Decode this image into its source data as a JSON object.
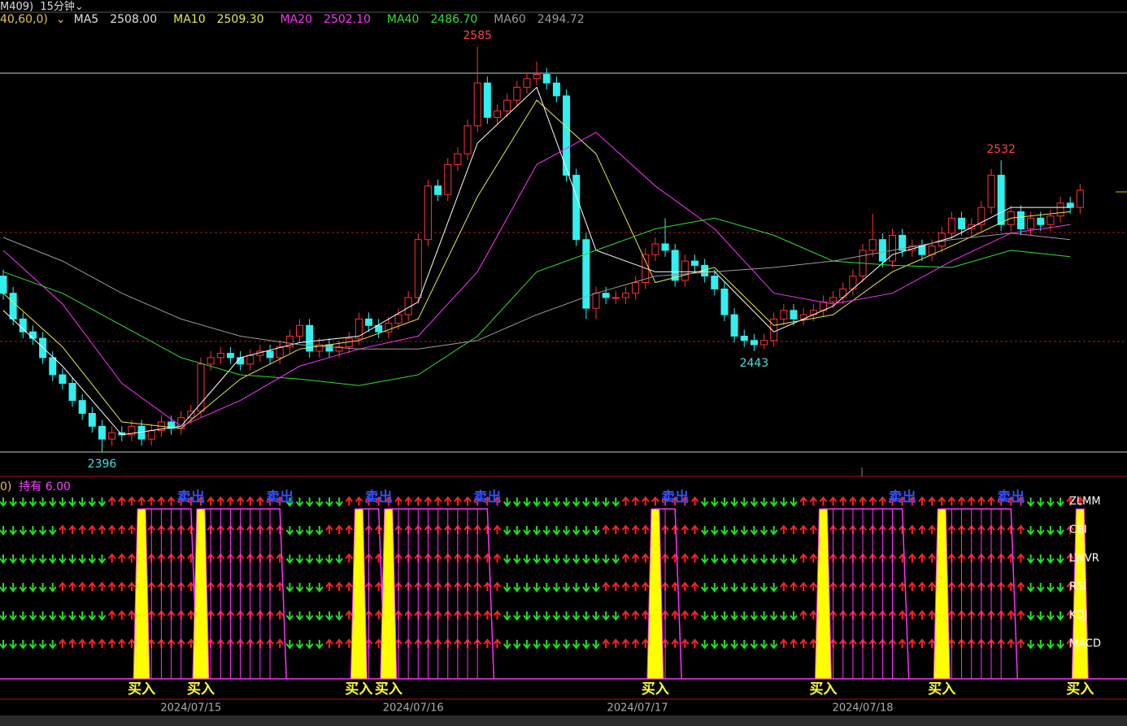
{
  "chart_data": {
    "type": "candlestick",
    "header": {
      "code": "M409)",
      "period": "15分钟",
      "params": "40,60,0)"
    },
    "ylim": [
      2385,
      2601
    ],
    "open": [
      2478,
      2470,
      2458,
      2452,
      2449,
      2440,
      2432,
      2428,
      2420,
      2414,
      2408,
      2402,
      2405,
      2404,
      2408,
      2402,
      2406,
      2410,
      2407,
      2412,
      2415,
      2437,
      2440,
      2442,
      2440,
      2437,
      2441,
      2443,
      2440,
      2445,
      2450,
      2455,
      2443,
      2446,
      2443,
      2445,
      2449,
      2458,
      2455,
      2452,
      2456,
      2460,
      2468,
      2495,
      2520,
      2516,
      2530,
      2535,
      2548,
      2568,
      2552,
      2555,
      2560,
      2566,
      2570,
      2572,
      2568,
      2562,
      2525,
      2495,
      2463,
      2470,
      2468,
      2468,
      2470,
      2475,
      2488,
      2493,
      2490,
      2476,
      2485,
      2483,
      2478,
      2472,
      2460,
      2450,
      2448,
      2446,
      2448,
      2458,
      2462,
      2458,
      2460,
      2462,
      2466,
      2468,
      2472,
      2478,
      2490,
      2495,
      2485,
      2497,
      2490,
      2492,
      2488,
      2492,
      2498,
      2505,
      2500,
      2502,
      2510,
      2525,
      2502,
      2508,
      2500,
      2505,
      2502,
      2506,
      2512,
      2510
    ],
    "high": [
      2481,
      2473,
      2461,
      2455,
      2452,
      2443,
      2435,
      2431,
      2423,
      2417,
      2411,
      2408,
      2408,
      2411,
      2411,
      2409,
      2413,
      2413,
      2415,
      2418,
      2440,
      2443,
      2445,
      2445,
      2443,
      2444,
      2446,
      2446,
      2448,
      2453,
      2458,
      2458,
      2449,
      2449,
      2448,
      2452,
      2461,
      2461,
      2458,
      2459,
      2463,
      2471,
      2498,
      2523,
      2523,
      2533,
      2538,
      2551,
      2585,
      2571,
      2558,
      2563,
      2569,
      2573,
      2578,
      2575,
      2571,
      2565,
      2528,
      2498,
      2473,
      2473,
      2471,
      2473,
      2478,
      2491,
      2496,
      2505,
      2493,
      2488,
      2488,
      2486,
      2481,
      2475,
      2463,
      2453,
      2451,
      2451,
      2461,
      2465,
      2465,
      2463,
      2465,
      2469,
      2471,
      2475,
      2481,
      2493,
      2507,
      2498,
      2500,
      2500,
      2495,
      2495,
      2495,
      2501,
      2508,
      2508,
      2505,
      2513,
      2528,
      2532,
      2511,
      2511,
      2508,
      2508,
      2509,
      2515,
      2515,
      2521
    ],
    "low": [
      2467,
      2455,
      2449,
      2446,
      2437,
      2429,
      2425,
      2417,
      2411,
      2405,
      2396,
      2399,
      2401,
      2401,
      2399,
      2399,
      2403,
      2404,
      2404,
      2409,
      2412,
      2434,
      2437,
      2437,
      2434,
      2434,
      2438,
      2437,
      2437,
      2442,
      2447,
      2440,
      2440,
      2440,
      2440,
      2442,
      2446,
      2452,
      2449,
      2449,
      2453,
      2457,
      2465,
      2492,
      2513,
      2513,
      2527,
      2532,
      2545,
      2549,
      2549,
      2552,
      2557,
      2563,
      2567,
      2565,
      2559,
      2522,
      2492,
      2458,
      2458,
      2465,
      2465,
      2465,
      2467,
      2472,
      2485,
      2487,
      2473,
      2473,
      2480,
      2475,
      2469,
      2457,
      2447,
      2445,
      2443,
      2444,
      2445,
      2455,
      2455,
      2455,
      2457,
      2459,
      2463,
      2465,
      2469,
      2475,
      2487,
      2482,
      2482,
      2487,
      2487,
      2485,
      2485,
      2489,
      2495,
      2497,
      2497,
      2499,
      2507,
      2499,
      2499,
      2497,
      2497,
      2499,
      2499,
      2503,
      2507,
      2507
    ],
    "close": [
      2470,
      2458,
      2452,
      2449,
      2440,
      2432,
      2428,
      2420,
      2414,
      2408,
      2402,
      2405,
      2404,
      2408,
      2402,
      2406,
      2410,
      2407,
      2412,
      2415,
      2437,
      2440,
      2442,
      2440,
      2437,
      2441,
      2443,
      2440,
      2445,
      2450,
      2455,
      2443,
      2446,
      2443,
      2445,
      2449,
      2458,
      2455,
      2452,
      2456,
      2460,
      2468,
      2495,
      2520,
      2516,
      2530,
      2535,
      2548,
      2568,
      2552,
      2555,
      2560,
      2566,
      2570,
      2572,
      2568,
      2562,
      2525,
      2495,
      2463,
      2470,
      2468,
      2468,
      2470,
      2475,
      2488,
      2493,
      2490,
      2476,
      2485,
      2483,
      2478,
      2472,
      2460,
      2450,
      2448,
      2446,
      2448,
      2458,
      2462,
      2458,
      2460,
      2462,
      2466,
      2468,
      2472,
      2478,
      2490,
      2495,
      2485,
      2497,
      2490,
      2492,
      2488,
      2492,
      2498,
      2505,
      2500,
      2502,
      2510,
      2525,
      2502,
      2508,
      2500,
      2505,
      2502,
      2506,
      2512,
      2510,
      2518
    ],
    "ma_x": [
      0,
      6,
      12,
      18,
      24,
      30,
      36,
      42,
      48,
      54,
      60,
      66,
      72,
      78,
      84,
      90,
      96,
      102,
      108
    ],
    "series": [
      {
        "name": "MA5",
        "color": "#ffffff",
        "last": 2508,
        "last_label": "2508.00",
        "values": [
          2462,
          2436,
          2404,
          2408,
          2440,
          2447,
          2450,
          2466,
          2540,
          2566,
          2490,
          2480,
          2480,
          2452,
          2464,
          2488,
          2496,
          2510,
          2510
        ]
      },
      {
        "name": "MA10",
        "color": "#e8e84a",
        "last": 2509.3,
        "last_label": "2509.30",
        "values": [
          2470,
          2445,
          2410,
          2407,
          2430,
          2444,
          2448,
          2458,
          2515,
          2560,
          2535,
          2475,
          2482,
          2455,
          2460,
          2480,
          2492,
          2505,
          2508
        ]
      },
      {
        "name": "MA20",
        "color": "#ff30ff",
        "last": 2502.1,
        "last_label": "2502.10",
        "values": [
          2490,
          2465,
          2428,
          2408,
          2420,
          2436,
          2444,
          2450,
          2480,
          2530,
          2545,
          2520,
          2500,
          2470,
          2465,
          2470,
          2485,
          2498,
          2502
        ]
      },
      {
        "name": "MA40",
        "color": "#30e030",
        "last": 2486.7,
        "last_label": "2486.70",
        "values": [
          2480,
          2470,
          2455,
          2440,
          2432,
          2430,
          2427,
          2432,
          2450,
          2480,
          2490,
          2500,
          2505,
          2497,
          2485,
          2483,
          2482,
          2490,
          2487
        ]
      },
      {
        "name": "MA60",
        "color": "#9a9a9a",
        "last": 2494.72,
        "last_label": "2494.72",
        "values": [
          2496,
          2485,
          2470,
          2458,
          2450,
          2446,
          2444,
          2444,
          2448,
          2460,
          2470,
          2478,
          2480,
          2482,
          2485,
          2490,
          2495,
          2498,
          2495
        ]
      }
    ],
    "annotations": [
      {
        "index": 48,
        "value": 2585,
        "color": "#ff4040",
        "pos": "high"
      },
      {
        "index": 101,
        "value": 2532,
        "color": "#ff4040",
        "pos": "high"
      },
      {
        "index": 76,
        "value": 2443,
        "color": "#40e0e0",
        "pos": "low"
      },
      {
        "index": 10,
        "value": 2396,
        "color": "#40e0e0",
        "pos": "low"
      }
    ],
    "xticks": [
      {
        "value": 19,
        "label": "2024/07/15"
      },
      {
        "value": 41.5,
        "label": "2024/07/16"
      },
      {
        "value": 64.2,
        "label": "2024/07/17"
      },
      {
        "value": 87,
        "label": "2024/07/18"
      }
    ],
    "indicator": {
      "prefix": "0)",
      "holding": "持有 6.00",
      "buy_label": "买入",
      "sell_label": "卖出",
      "buy_points": [
        14,
        20,
        36,
        39,
        66,
        83,
        95,
        109
      ],
      "sell_points": [
        19,
        28,
        38,
        49,
        68,
        91,
        102
      ],
      "signals": [
        {
          "name": "ZLMM",
          "pattern": "GGGGGGGGGGGRRRRRRRRRRRRRRRRRRGGGGGGRRRRRRRRRRRRRRRRGGGGGGGGGGGGRRRRRRRRGGGGGGGGGGRRRRRRRRRRRRRRRRRRRRRRRGGGGRR"
        },
        {
          "name": "CBI",
          "pattern": "GGGGGGRRRRRRRRRRRRRRRRRRRRRRRGGGGRRRRRRRRRRRRRRRRRRGGGGGGGGGGRRRRRRRRRRGGGGGGGGRRRRRRRRRRRRRRRRRRRRRRRRRGGGGRR"
        },
        {
          "name": "LWVR",
          "pattern": "GGGGGGGGGGGRRRRRRRRRRRRRRRRRRGGGGGGRRRRRRRRRRRRRRRRGGGGGGGGGGGGRRRRRRRRGGGGGGGGGGRRRRRRRRRRRRRRRRRRRRRRRGGGGRR"
        },
        {
          "name": "RSI",
          "pattern": "GGGGGGRRRRRRRRRRRRRRRRRRRRRRRGGGGRRRRRRRRRRRRRRRRRRGGGGGGGGGGRRRRRRRRRRGGGGGGGGRRRRRRRRRRRRRRRRRRRRRRRRRGGGGRR"
        },
        {
          "name": "KDJ",
          "pattern": "GGGGGGGGGGGRRRRRRRRRRRRRRRRRRGGGGGGRRRRRRRRRRRRRRRRGGGGGGGGGGGGRRRRRRRRGGGGGGGGGGRRRRRRRRRRRRRRRRRRRRRRRGGGGRR"
        },
        {
          "name": "MACD",
          "pattern": "GGGGGGRRRRRRRRRRRRRRRRRRRRRRRGGGGRRRRRRRRRRRRRRRRRRGGGGGGGGGGRRRRRRRRRRGGGGGGGGRRRRRRRRRRRRRRRRRRRRRRRRRGGGGRR"
        }
      ]
    }
  }
}
